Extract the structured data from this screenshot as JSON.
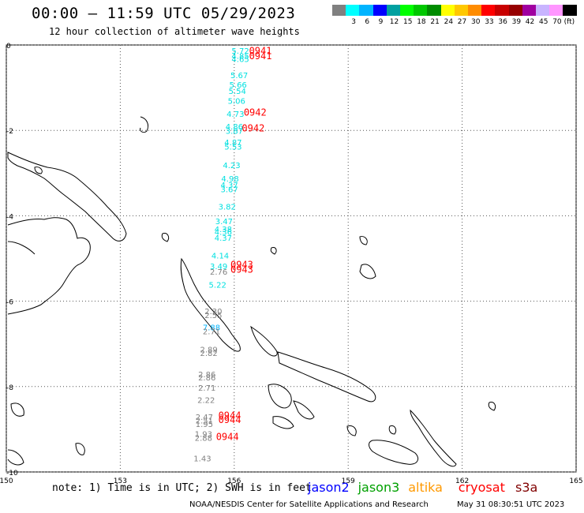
{
  "header": {
    "title": "00:00 – 11:59 UTC 05/29/2023",
    "subtitle": "12 hour collection of altimeter wave heights"
  },
  "color_scale": {
    "unit_label": "(ft)",
    "swatches": [
      {
        "color": "#808080",
        "label": ""
      },
      {
        "color": "#00ffff",
        "label": "3"
      },
      {
        "color": "#00b4ff",
        "label": "6"
      },
      {
        "color": "#0000ff",
        "label": "9"
      },
      {
        "color": "#00a0a0",
        "label": "12"
      },
      {
        "color": "#00ff00",
        "label": "15"
      },
      {
        "color": "#00c800",
        "label": "18"
      },
      {
        "color": "#008c00",
        "label": "21"
      },
      {
        "color": "#ffff00",
        "label": "24"
      },
      {
        "color": "#ffc800",
        "label": "27"
      },
      {
        "color": "#ff8c00",
        "label": "30"
      },
      {
        "color": "#ff0000",
        "label": "33"
      },
      {
        "color": "#c80000",
        "label": "36"
      },
      {
        "color": "#960000",
        "label": "39"
      },
      {
        "color": "#a000a0",
        "label": "42"
      },
      {
        "color": "#c8b4ff",
        "label": "45"
      },
      {
        "color": "#ff96ff",
        "label": "70"
      },
      {
        "color": "#000000",
        "label": ""
      }
    ]
  },
  "axes": {
    "lon_ticks": [
      "150",
      "153",
      "156",
      "159",
      "162",
      "165"
    ],
    "lat_ticks": [
      "0",
      "-2",
      "-4",
      "-6",
      "-8",
      "-10"
    ],
    "lon_range": [
      150,
      165
    ],
    "lat_range": [
      0,
      -10
    ],
    "grid": "dotted"
  },
  "wave_readings": [
    {
      "text": "5.72",
      "color": "#00e0e0",
      "lon": 155.93,
      "lat": -0.2
    },
    {
      "text": "4.85",
      "color": "#00e0e0",
      "lon": 155.93,
      "lat": -0.32
    },
    {
      "text": "4.65",
      "color": "#00e0e0",
      "lon": 155.93,
      "lat": -0.4
    },
    {
      "text": "5.67",
      "color": "#00e0e0",
      "lon": 155.9,
      "lat": -0.78
    },
    {
      "text": "5.66",
      "color": "#00e0e0",
      "lon": 155.87,
      "lat": -1.0
    },
    {
      "text": "5.54",
      "color": "#00e0e0",
      "lon": 155.85,
      "lat": -1.15
    },
    {
      "text": "5.06",
      "color": "#00e0e0",
      "lon": 155.83,
      "lat": -1.38
    },
    {
      "text": "4.73",
      "color": "#00e0e0",
      "lon": 155.8,
      "lat": -1.68
    },
    {
      "text": "4.86",
      "color": "#00e0e0",
      "lon": 155.77,
      "lat": -1.98
    },
    {
      "text": "3.87",
      "color": "#00e0e0",
      "lon": 155.77,
      "lat": -2.08
    },
    {
      "text": "4.87",
      "color": "#00e0e0",
      "lon": 155.74,
      "lat": -2.35
    },
    {
      "text": "5.53",
      "color": "#00e0e0",
      "lon": 155.74,
      "lat": -2.45
    },
    {
      "text": "4.23",
      "color": "#00e0e0",
      "lon": 155.7,
      "lat": -2.88
    },
    {
      "text": "4.98",
      "color": "#00e0e0",
      "lon": 155.66,
      "lat": -3.2
    },
    {
      "text": "4.37",
      "color": "#00e0e0",
      "lon": 155.64,
      "lat": -3.35
    },
    {
      "text": "3.67",
      "color": "#00e0e0",
      "lon": 155.64,
      "lat": -3.45
    },
    {
      "text": "3.82",
      "color": "#00e0e0",
      "lon": 155.58,
      "lat": -3.85
    },
    {
      "text": "3.47",
      "color": "#00e0e0",
      "lon": 155.5,
      "lat": -4.2
    },
    {
      "text": "4.38",
      "color": "#00e0e0",
      "lon": 155.48,
      "lat": -4.38
    },
    {
      "text": "4.36",
      "color": "#00e0e0",
      "lon": 155.48,
      "lat": -4.45
    },
    {
      "text": "4.37",
      "color": "#00e0e0",
      "lon": 155.48,
      "lat": -4.58
    },
    {
      "text": "4.14",
      "color": "#00e0e0",
      "lon": 155.4,
      "lat": -5.0
    },
    {
      "text": "3.49",
      "color": "#00e0e0",
      "lon": 155.36,
      "lat": -5.25
    },
    {
      "text": "2.76",
      "color": "#808080",
      "lon": 155.36,
      "lat": -5.38
    },
    {
      "text": "5.22",
      "color": "#00e0e0",
      "lon": 155.33,
      "lat": -5.68
    },
    {
      "text": "2.30",
      "color": "#808080",
      "lon": 155.22,
      "lat": -6.3
    },
    {
      "text": "2.55",
      "color": "#808080",
      "lon": 155.22,
      "lat": -6.4
    },
    {
      "text": "7.88",
      "color": "#00b4ff",
      "lon": 155.17,
      "lat": -6.68
    },
    {
      "text": "2.71",
      "color": "#808080",
      "lon": 155.17,
      "lat": -6.77
    },
    {
      "text": "2.89",
      "color": "#808080",
      "lon": 155.1,
      "lat": -7.2
    },
    {
      "text": "2.82",
      "color": "#808080",
      "lon": 155.1,
      "lat": -7.28
    },
    {
      "text": "2.86",
      "color": "#808080",
      "lon": 155.05,
      "lat": -7.78
    },
    {
      "text": "2.86",
      "color": "#808080",
      "lon": 155.05,
      "lat": -7.86
    },
    {
      "text": "2.71",
      "color": "#808080",
      "lon": 155.05,
      "lat": -8.1
    },
    {
      "text": "2.22",
      "color": "#808080",
      "lon": 155.03,
      "lat": -8.38
    },
    {
      "text": "2.47",
      "color": "#808080",
      "lon": 154.98,
      "lat": -8.78
    },
    {
      "text": "2.51",
      "color": "#808080",
      "lon": 154.98,
      "lat": -8.86
    },
    {
      "text": "1.95",
      "color": "#808080",
      "lon": 154.98,
      "lat": -8.95
    },
    {
      "text": "1.93",
      "color": "#808080",
      "lon": 154.96,
      "lat": -9.18
    },
    {
      "text": "2.88",
      "color": "#808080",
      "lon": 154.96,
      "lat": -9.27
    },
    {
      "text": "1.43",
      "color": "#808080",
      "lon": 154.93,
      "lat": -9.75
    }
  ],
  "time_labels": [
    {
      "text": "0941",
      "color": "#ff0000",
      "lon": 156.39,
      "lat": -0.21
    },
    {
      "text": "0941",
      "color": "#ff0000",
      "lon": 156.39,
      "lat": -0.33
    },
    {
      "text": "0942",
      "color": "#ff0000",
      "lon": 156.25,
      "lat": -1.65
    },
    {
      "text": "0942",
      "color": "#ff0000",
      "lon": 156.2,
      "lat": -2.02
    },
    {
      "text": "0943",
      "color": "#ff0000",
      "lon": 155.9,
      "lat": -5.22
    },
    {
      "text": "0943",
      "color": "#ff0000",
      "lon": 155.9,
      "lat": -5.33
    },
    {
      "text": "0944",
      "color": "#ff0000",
      "lon": 155.58,
      "lat": -8.75
    },
    {
      "text": "0944",
      "color": "#ff0000",
      "lon": 155.58,
      "lat": -8.85
    },
    {
      "text": "0944",
      "color": "#ff0000",
      "lon": 155.52,
      "lat": -9.25
    }
  ],
  "footer": {
    "note": "note: 1) Time is in UTC; 2) SWH is in feet",
    "satellites": [
      {
        "name": "jason2",
        "color": "#0000ff"
      },
      {
        "name": "jason3",
        "color": "#00a000"
      },
      {
        "name": "altika",
        "color": "#ff9900"
      },
      {
        "name": "cryosat",
        "color": "#ff0000"
      },
      {
        "name": "s3a",
        "color": "#800000"
      }
    ],
    "credit": "NOAA/NESDIS Center for Satellite Applications and Research",
    "timestamp": "May 31 08:30:51 UTC 2023"
  }
}
